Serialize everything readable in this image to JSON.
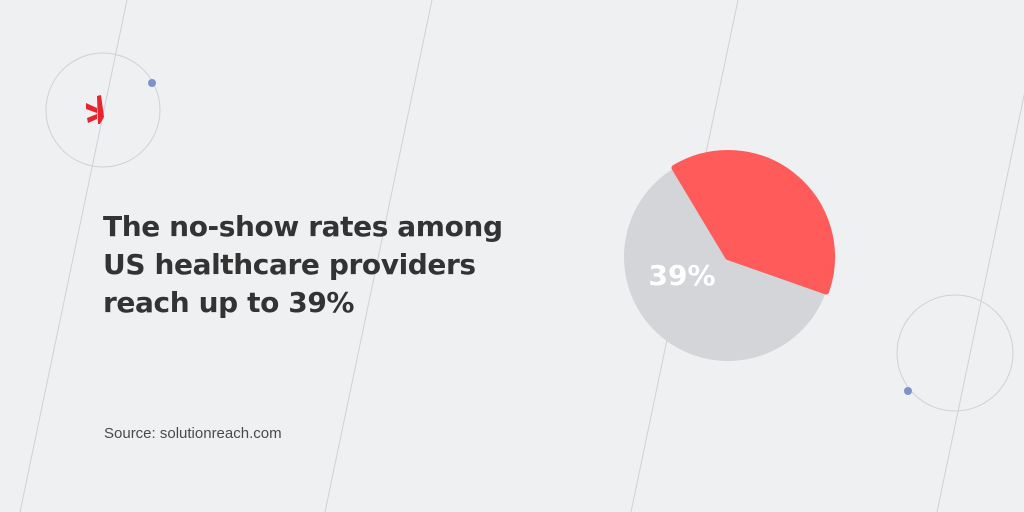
{
  "headline": {
    "lines": [
      "The no-show rates among",
      "US healthcare providers",
      "reach up to 39%"
    ]
  },
  "source": "Source: solutionreach.com",
  "chart_data": {
    "type": "pie",
    "title": "",
    "slices": [
      {
        "label": "39%",
        "value": 39,
        "color": "#ff5b5b"
      },
      {
        "label": "",
        "value": 61,
        "color": "#d3d5d8"
      }
    ],
    "label_color": "#ffffff"
  },
  "colors": {
    "background": "#eff0f2",
    "accent": "#ff5b5b",
    "logo": "#e8242c",
    "dots": "#7b93c9",
    "lines": "#cfd1d4"
  },
  "decor": {
    "logo_icon": "asterisk-logo-icon"
  }
}
